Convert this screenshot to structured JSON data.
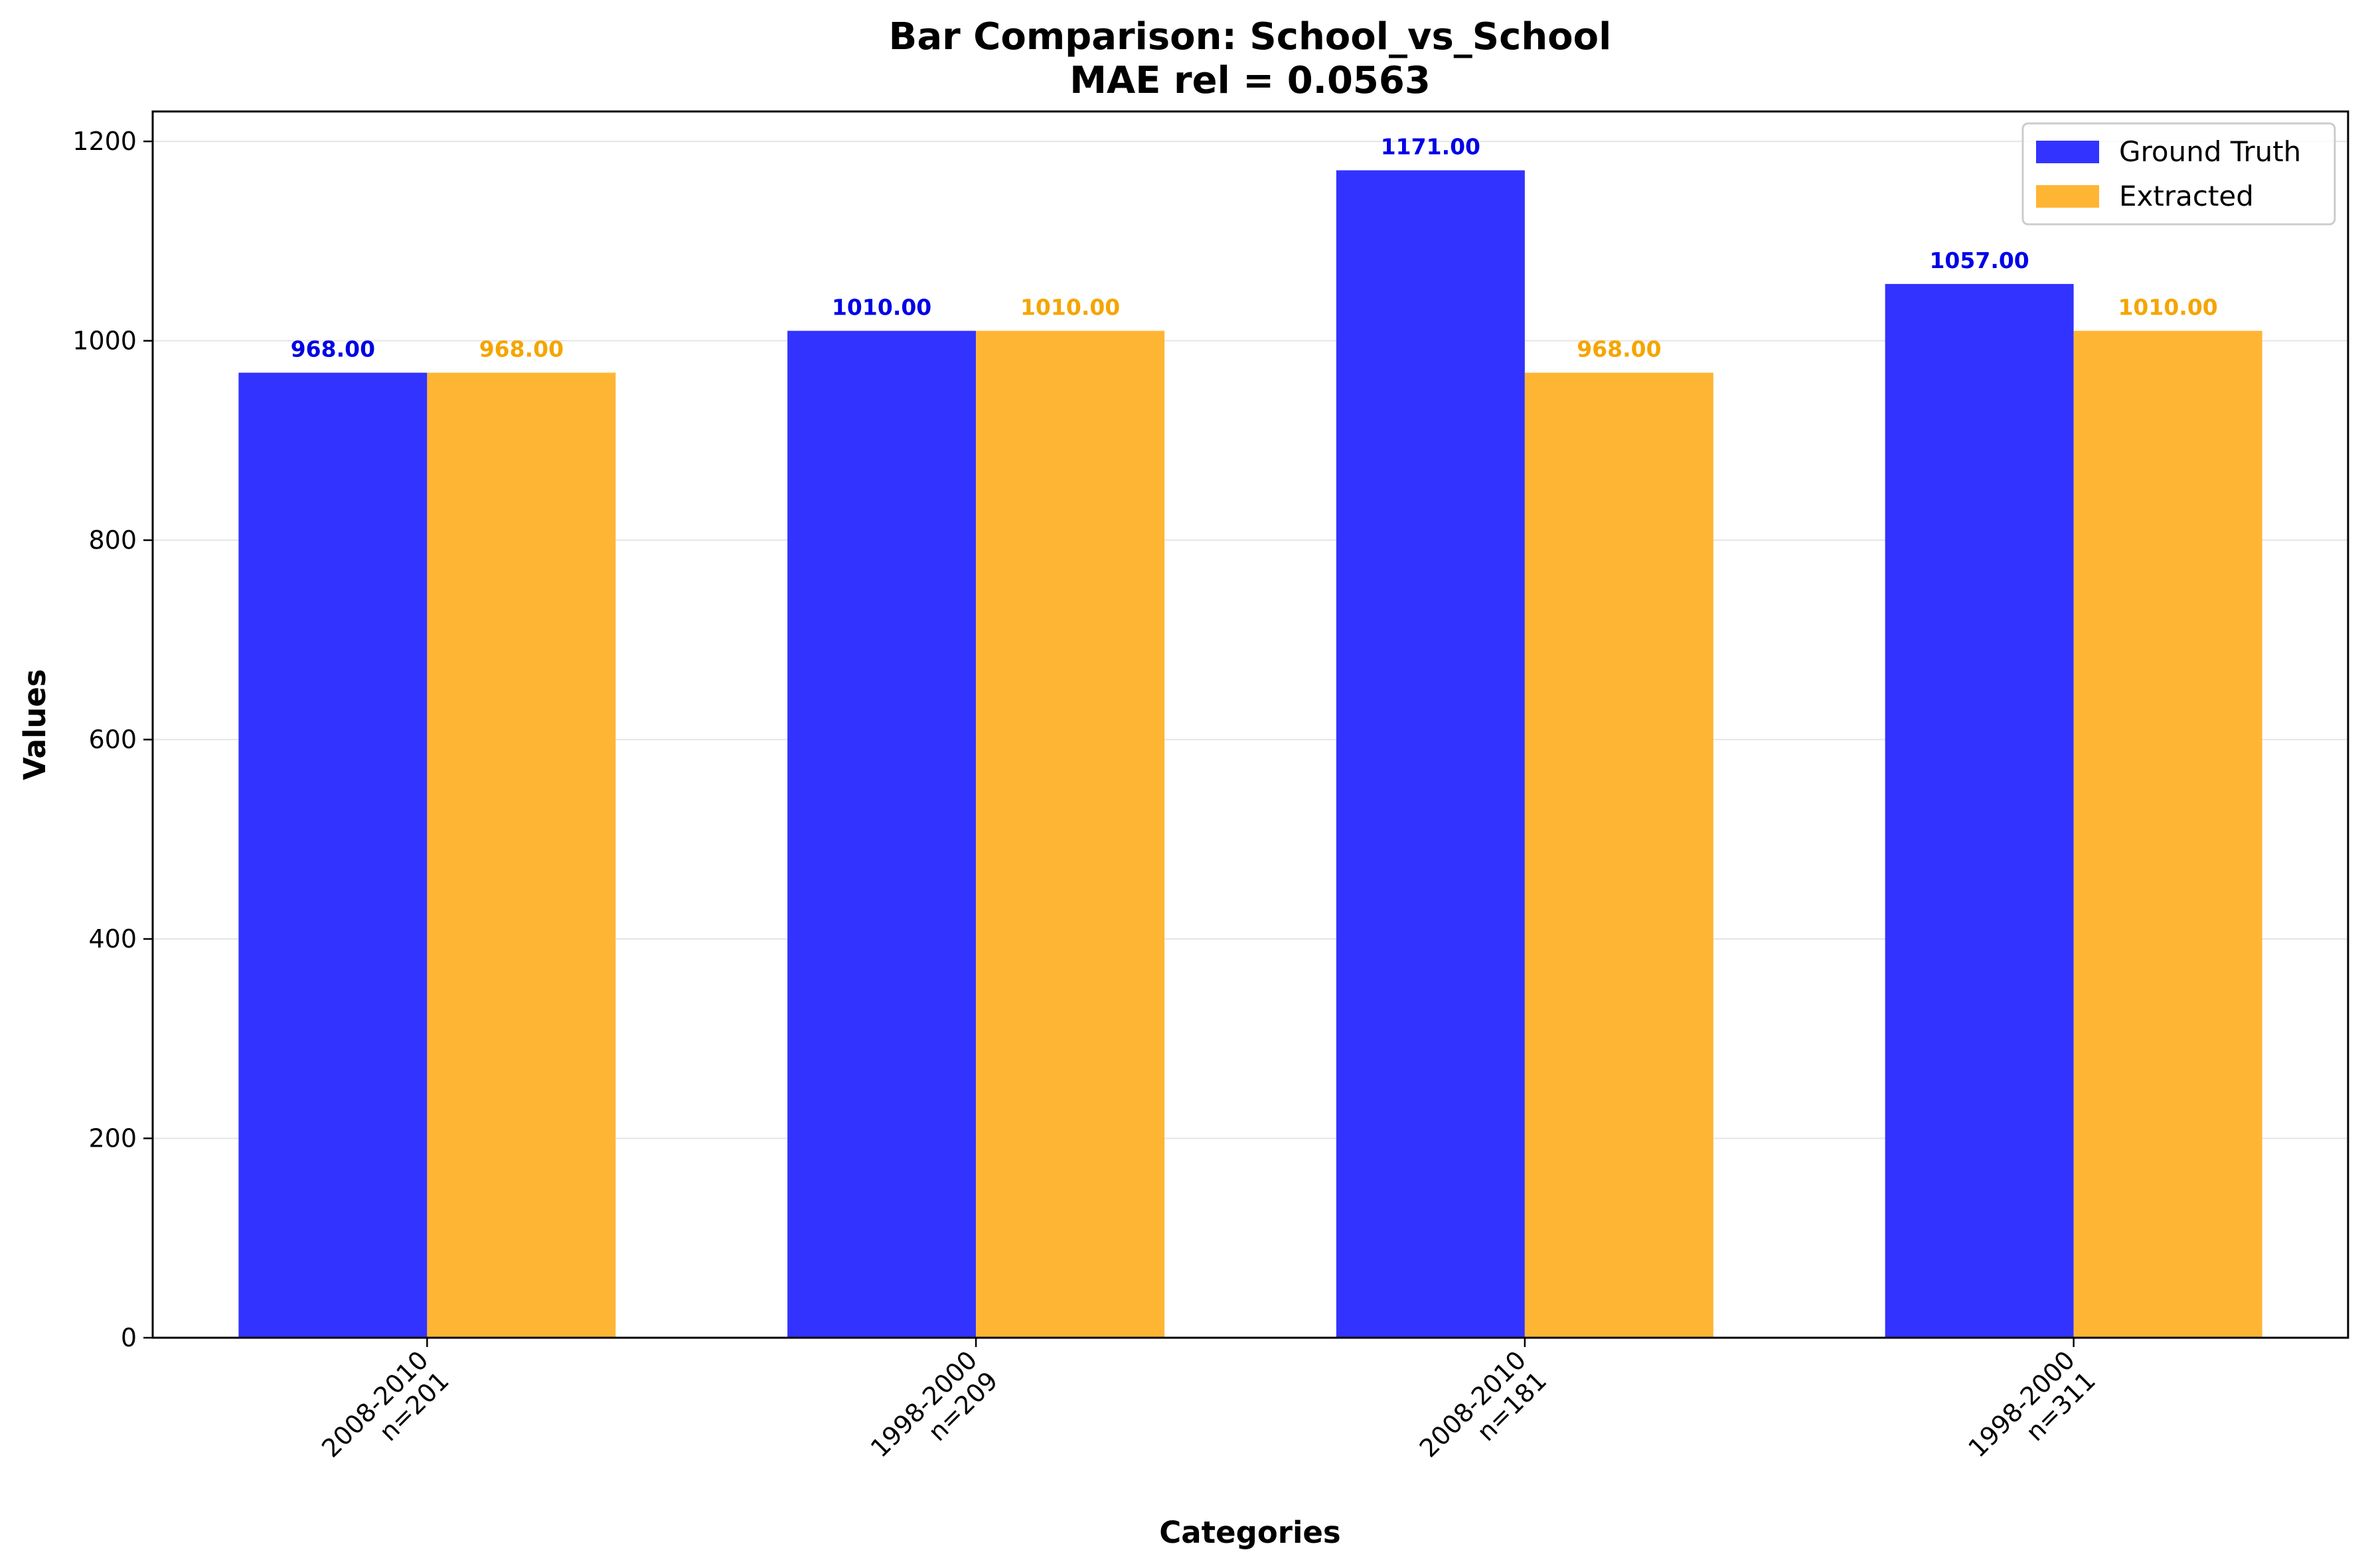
{
  "chart_data": {
    "type": "bar",
    "title": "Bar Comparison: School_vs_School",
    "subtitle": "MAE rel = 0.0563",
    "xlabel": "Categories",
    "ylabel": "Values",
    "ylim": [
      0,
      1230
    ],
    "yticks": [
      0,
      200,
      400,
      600,
      800,
      1000,
      1200
    ],
    "grid": "horizontal",
    "legend_position": "top-right",
    "categories": [
      [
        "2008-2010",
        "n=201"
      ],
      [
        "1998-2000",
        "n=209"
      ],
      [
        "2008-2010",
        "n=181"
      ],
      [
        "1998-2000",
        "n=311"
      ]
    ],
    "series": [
      {
        "name": "Ground Truth",
        "color": "#3333ff",
        "label_color": "#0000e6",
        "values": [
          968.0,
          1010.0,
          1171.0,
          1057.0
        ],
        "labels": [
          "968.00",
          "1010.00",
          "1171.00",
          "1057.00"
        ]
      },
      {
        "name": "Extracted",
        "color": "#ffb534",
        "label_color": "#f5a500",
        "values": [
          968.0,
          1010.0,
          968.0,
          1010.0
        ],
        "labels": [
          "968.00",
          "1010.00",
          "968.00",
          "1010.00"
        ]
      }
    ]
  }
}
